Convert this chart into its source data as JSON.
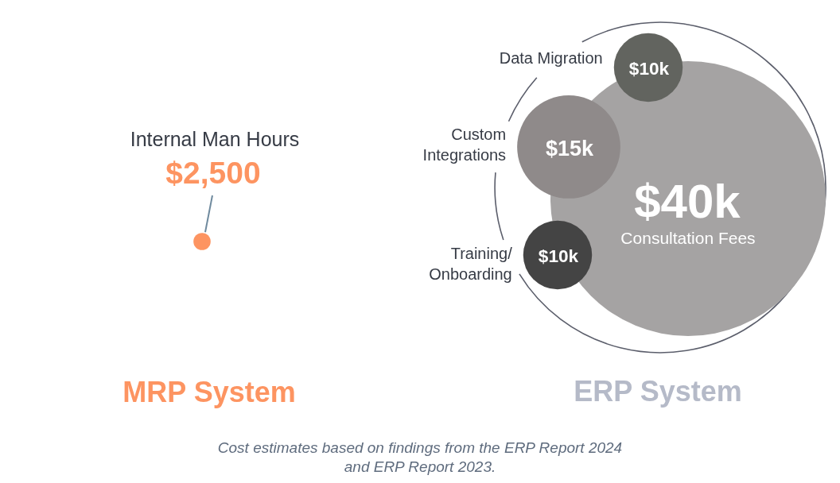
{
  "chart_data": [
    {
      "type": "other",
      "title": "MRP System",
      "categories": [
        "Internal Man Hours"
      ],
      "values": [
        2500
      ],
      "value_labels": [
        "$2,500"
      ],
      "colors": [
        "#fd9461"
      ]
    },
    {
      "type": "other",
      "title": "ERP System",
      "categories": [
        "Consultation Fees",
        "Data Migration",
        "Custom Integrations",
        "Training/ Onboarding"
      ],
      "values": [
        40000,
        10000,
        15000,
        10000
      ],
      "value_labels": [
        "$40k",
        "$10k",
        "$15k",
        "$10k"
      ],
      "colors": [
        "#a5a3a3",
        "#62645f",
        "#8f8a8a",
        "#444444"
      ],
      "annotations": [
        "Cost estimates based on findings from the ERP Report 2024 and ERP Report 2023."
      ]
    }
  ]
}
